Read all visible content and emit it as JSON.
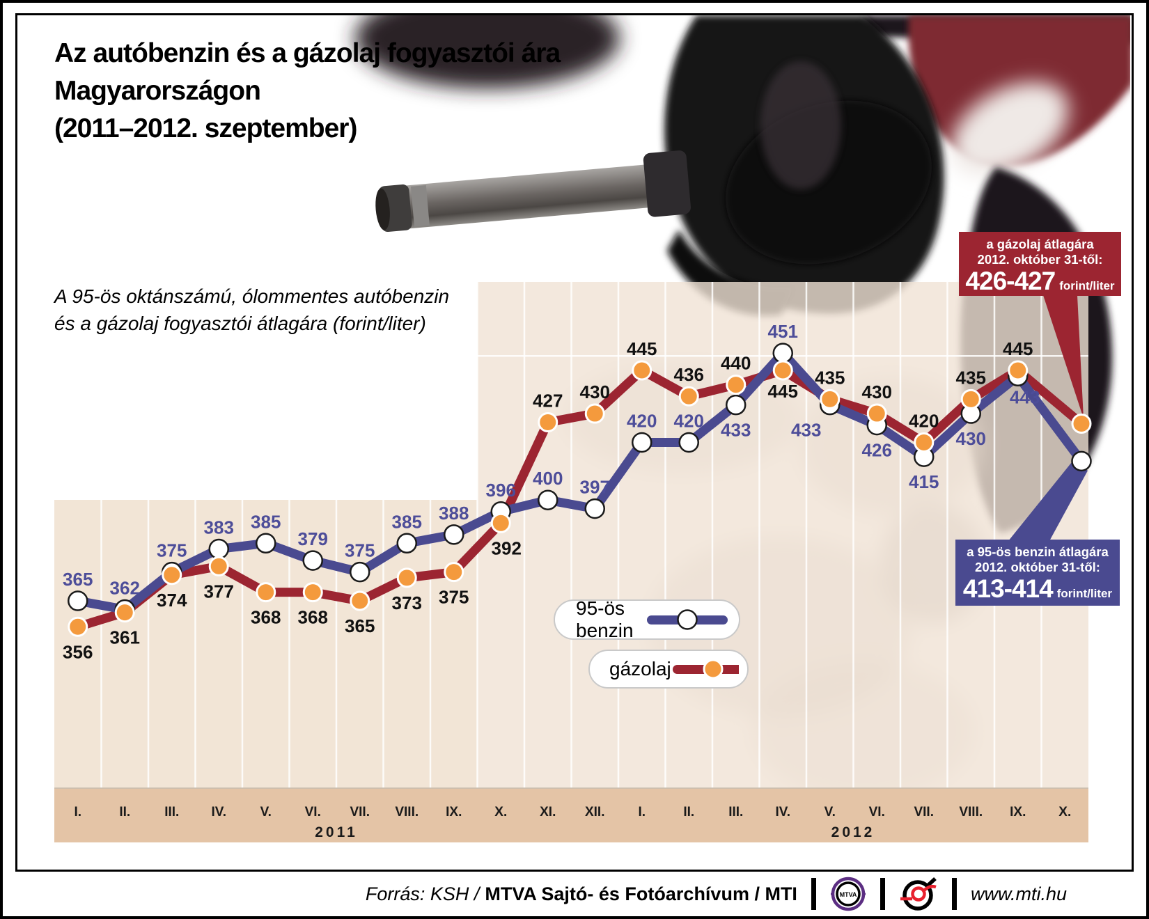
{
  "title": {
    "lines": [
      "Az autóbenzin és a gázolaj fogyasztói ára",
      "Magyarországon",
      "(2011–2012. szeptember)"
    ]
  },
  "subtitle": {
    "lines": [
      "A 95-ös oktánszámú, ólommentes autóbenzin",
      "és a gázolaj fogyasztói átlagára (forint/liter)"
    ]
  },
  "legend": {
    "benzin_label": "95-ös benzin",
    "gazolaj_label": "gázolaj"
  },
  "callouts": {
    "gazolaj": {
      "title_line1": "a gázolaj átlagára",
      "title_line2": "2012. október 31-től:",
      "value": "426-427",
      "unit": "forint/liter",
      "bg_color": "#9c2531"
    },
    "benzin": {
      "title_line1": "a 95-ös benzin átlagára",
      "title_line2": "2012. október 31-től:",
      "value": "413-414",
      "unit": "forint/liter",
      "bg_color": "#4a4a90"
    }
  },
  "footer": {
    "source_italic": "Forrás: KSH /",
    "source_bold": "MTVA Sajtó- és Fotóarchívum / MTI",
    "mtva_logo_text": "MTVA",
    "url": "www.mti.hu"
  },
  "chart_data": {
    "type": "line",
    "x_tick_labels": [
      "I.",
      "II.",
      "III.",
      "IV.",
      "V.",
      "VI.",
      "VII.",
      "VIII.",
      "IX.",
      "X.",
      "XI.",
      "XII.",
      "I.",
      "II.",
      "III.",
      "IV.",
      "V.",
      "VI.",
      "VII.",
      "VIII.",
      "IX.",
      "X."
    ],
    "year_labels": [
      "2011",
      "2012"
    ],
    "ylim": [
      300,
      475
    ],
    "gridline_value": 450,
    "colors": {
      "panel": "#f2e5d6",
      "panel_translucent": "rgba(240,226,212,0.8)",
      "band": "#e4c4a6",
      "gridline": "rgba(255,255,255,0.85)",
      "tick_text": "#1a1a1a"
    },
    "series": [
      {
        "name": "95-ös benzin",
        "line_color": "#4a4a90",
        "marker_fill": "#ffffff",
        "marker_stroke": "#1a1a1a",
        "label_color": "#4d4d99",
        "points": [
          {
            "v": 365,
            "l": "365",
            "p": "a"
          },
          {
            "v": 362,
            "l": "362",
            "p": "a"
          },
          {
            "v": 375,
            "l": "375",
            "p": "a"
          },
          {
            "v": 383,
            "l": "383",
            "p": "a"
          },
          {
            "v": 385,
            "l": "385",
            "p": "a"
          },
          {
            "v": 379,
            "l": "379",
            "p": "a"
          },
          {
            "v": 375,
            "l": "375",
            "p": "a"
          },
          {
            "v": 385,
            "l": "385",
            "p": "a"
          },
          {
            "v": 388,
            "l": "388",
            "p": "a"
          },
          {
            "v": 396,
            "l": "396",
            "p": "a"
          },
          {
            "v": 400,
            "l": "400",
            "p": "a"
          },
          {
            "v": 397,
            "l": "397",
            "p": "a"
          },
          {
            "v": 420,
            "l": "420",
            "p": "a"
          },
          {
            "v": 420,
            "l": "420",
            "p": "a"
          },
          {
            "v": 433,
            "l": "433",
            "p": "b"
          },
          {
            "v": 451,
            "l": "451",
            "p": "a"
          },
          {
            "v": 433,
            "l": "433",
            "p": "b",
            "dx": -34
          },
          {
            "v": 426,
            "l": "426",
            "p": "b"
          },
          {
            "v": 415,
            "l": "415",
            "p": "b"
          },
          {
            "v": 430,
            "l": "430",
            "p": "b"
          },
          {
            "v": 443,
            "l": "443",
            "p": "b",
            "dx": 10,
            "dy": -6
          },
          {
            "v": 413.5,
            "l": "",
            "p": "b"
          }
        ]
      },
      {
        "name": "gázolaj",
        "line_color": "#9c2531",
        "marker_fill": "#f49a3d",
        "marker_stroke": "#ffffff",
        "label_color": "#111111",
        "points": [
          {
            "v": 356,
            "l": "356",
            "p": "b"
          },
          {
            "v": 361,
            "l": "361",
            "p": "b"
          },
          {
            "v": 374,
            "l": "374",
            "p": "b"
          },
          {
            "v": 377,
            "l": "377",
            "p": "b"
          },
          {
            "v": 368,
            "l": "368",
            "p": "b"
          },
          {
            "v": 368,
            "l": "368",
            "p": "b"
          },
          {
            "v": 365,
            "l": "365",
            "p": "b"
          },
          {
            "v": 373,
            "l": "373",
            "p": "b"
          },
          {
            "v": 375,
            "l": "375",
            "p": "b"
          },
          {
            "v": 392,
            "l": "392",
            "p": "b",
            "dx": 8
          },
          {
            "v": 427,
            "l": "427",
            "p": "a"
          },
          {
            "v": 430,
            "l": "430",
            "p": "a"
          },
          {
            "v": 445,
            "l": "445",
            "p": "a"
          },
          {
            "v": 436,
            "l": "436",
            "p": "a"
          },
          {
            "v": 440,
            "l": "440",
            "p": "a"
          },
          {
            "v": 445,
            "l": "445",
            "p": "b",
            "dy": -6
          },
          {
            "v": 435,
            "l": "435",
            "p": "a"
          },
          {
            "v": 430,
            "l": "430",
            "p": "a"
          },
          {
            "v": 420,
            "l": "420",
            "p": "a"
          },
          {
            "v": 435,
            "l": "435",
            "p": "a"
          },
          {
            "v": 445,
            "l": "445",
            "p": "a"
          },
          {
            "v": 426.5,
            "l": "",
            "p": "a"
          }
        ]
      }
    ]
  }
}
